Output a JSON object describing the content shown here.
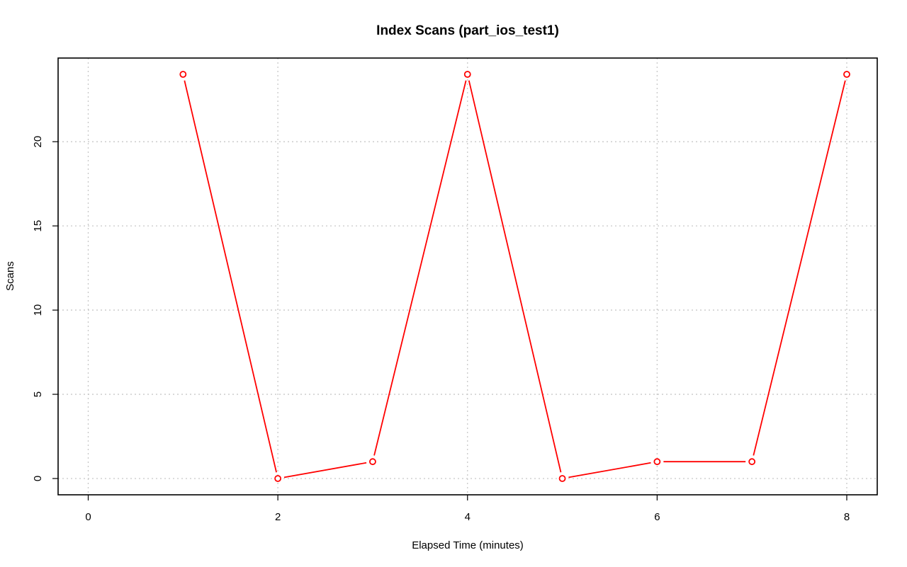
{
  "chart_data": {
    "type": "line",
    "title": "Index Scans (part_ios_test1)",
    "xlabel": "Elapsed Time (minutes)",
    "ylabel": "Scans",
    "xlim": [
      0,
      8
    ],
    "ylim": [
      0,
      24
    ],
    "x_ticks": [
      0,
      2,
      4,
      6,
      8
    ],
    "y_ticks": [
      0,
      5,
      10,
      15,
      20
    ],
    "grid": true,
    "series": [
      {
        "color": "#ff0000",
        "x": [
          1,
          2,
          3,
          4,
          5,
          6,
          7,
          8
        ],
        "y": [
          24,
          0,
          1,
          24,
          0,
          1,
          1,
          24
        ]
      }
    ]
  }
}
